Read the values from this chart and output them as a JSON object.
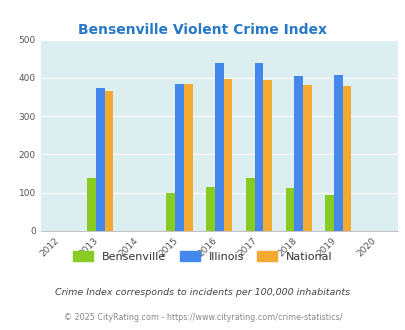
{
  "title": "Bensenville Violent Crime Index",
  "title_color": "#2878c8",
  "years": [
    2013,
    2015,
    2016,
    2017,
    2018,
    2019
  ],
  "bensenville": [
    138,
    100,
    116,
    138,
    112,
    95
  ],
  "illinois": [
    373,
    383,
    438,
    438,
    405,
    408
  ],
  "national": [
    367,
    383,
    397,
    394,
    381,
    379
  ],
  "bensenville_color": "#88cc22",
  "illinois_color": "#4488ee",
  "national_color": "#f4aa30",
  "fig_bg_color": "#ffffff",
  "plot_bg_color": "#ddeef0",
  "ylim": [
    0,
    500
  ],
  "yticks": [
    0,
    100,
    200,
    300,
    400,
    500
  ],
  "xticks": [
    2012,
    2013,
    2014,
    2015,
    2016,
    2017,
    2018,
    2019,
    2020
  ],
  "footnote1": "Crime Index corresponds to incidents per 100,000 inhabitants",
  "footnote2": "© 2025 CityRating.com - https://www.cityrating.com/crime-statistics/",
  "legend_labels": [
    "Bensenville",
    "Illinois",
    "National"
  ],
  "bar_width": 0.22
}
